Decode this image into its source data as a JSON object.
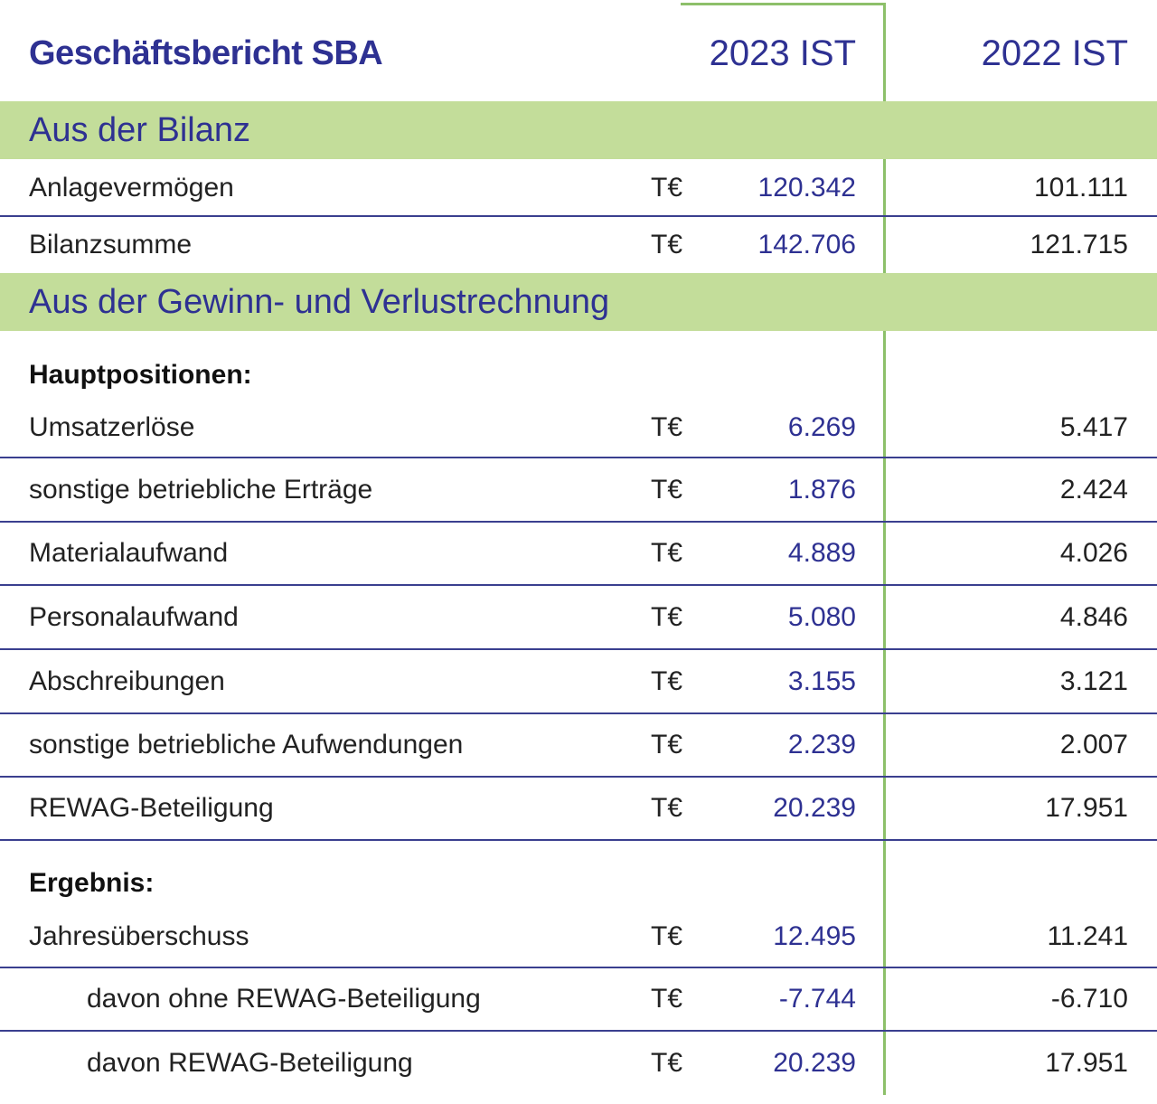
{
  "header": {
    "title": "Geschäftsbericht SBA",
    "col_2023": "2023 IST",
    "col_2022": "2022 IST"
  },
  "sections": {
    "bilanz": "Aus der Bilanz",
    "guv": "Aus der Gewinn- und Verlustrechnung"
  },
  "subheads": {
    "hauptpositionen": "Hauptpositionen:",
    "ergebnis": "Ergebnis:"
  },
  "colors": {
    "accent_blue": "#2e3192",
    "band_green": "#c3dd9a",
    "line_green": "#8dc06a"
  },
  "rows": [
    {
      "label": "Anlagevermögen",
      "unit": "T€",
      "v2023": "120.342",
      "v2022": "101.111"
    },
    {
      "label": "Bilanzsumme",
      "unit": "T€",
      "v2023": "142.706",
      "v2022": "121.715"
    },
    {
      "label": "Umsatzerlöse",
      "unit": "T€",
      "v2023": "6.269",
      "v2022": "5.417"
    },
    {
      "label": "sonstige betriebliche Erträge",
      "unit": "T€",
      "v2023": "1.876",
      "v2022": "2.424"
    },
    {
      "label": "Materialaufwand",
      "unit": "T€",
      "v2023": "4.889",
      "v2022": "4.026"
    },
    {
      "label": "Personalaufwand",
      "unit": "T€",
      "v2023": "5.080",
      "v2022": "4.846"
    },
    {
      "label": "Abschreibungen",
      "unit": "T€",
      "v2023": "3.155",
      "v2022": "3.121"
    },
    {
      "label": "sonstige betriebliche Aufwendungen",
      "unit": "T€",
      "v2023": "2.239",
      "v2022": "2.007"
    },
    {
      "label": "REWAG-Beteiligung",
      "unit": "T€",
      "v2023": "20.239",
      "v2022": "17.951"
    },
    {
      "label": "Jahresüberschuss",
      "unit": "T€",
      "v2023": "12.495",
      "v2022": "11.241"
    },
    {
      "label": "davon ohne REWAG-Beteiligung",
      "unit": "T€",
      "v2023": "-7.744",
      "v2022": "-6.710"
    },
    {
      "label": "davon REWAG-Beteiligung",
      "unit": "T€",
      "v2023": "20.239",
      "v2022": "17.951"
    }
  ]
}
